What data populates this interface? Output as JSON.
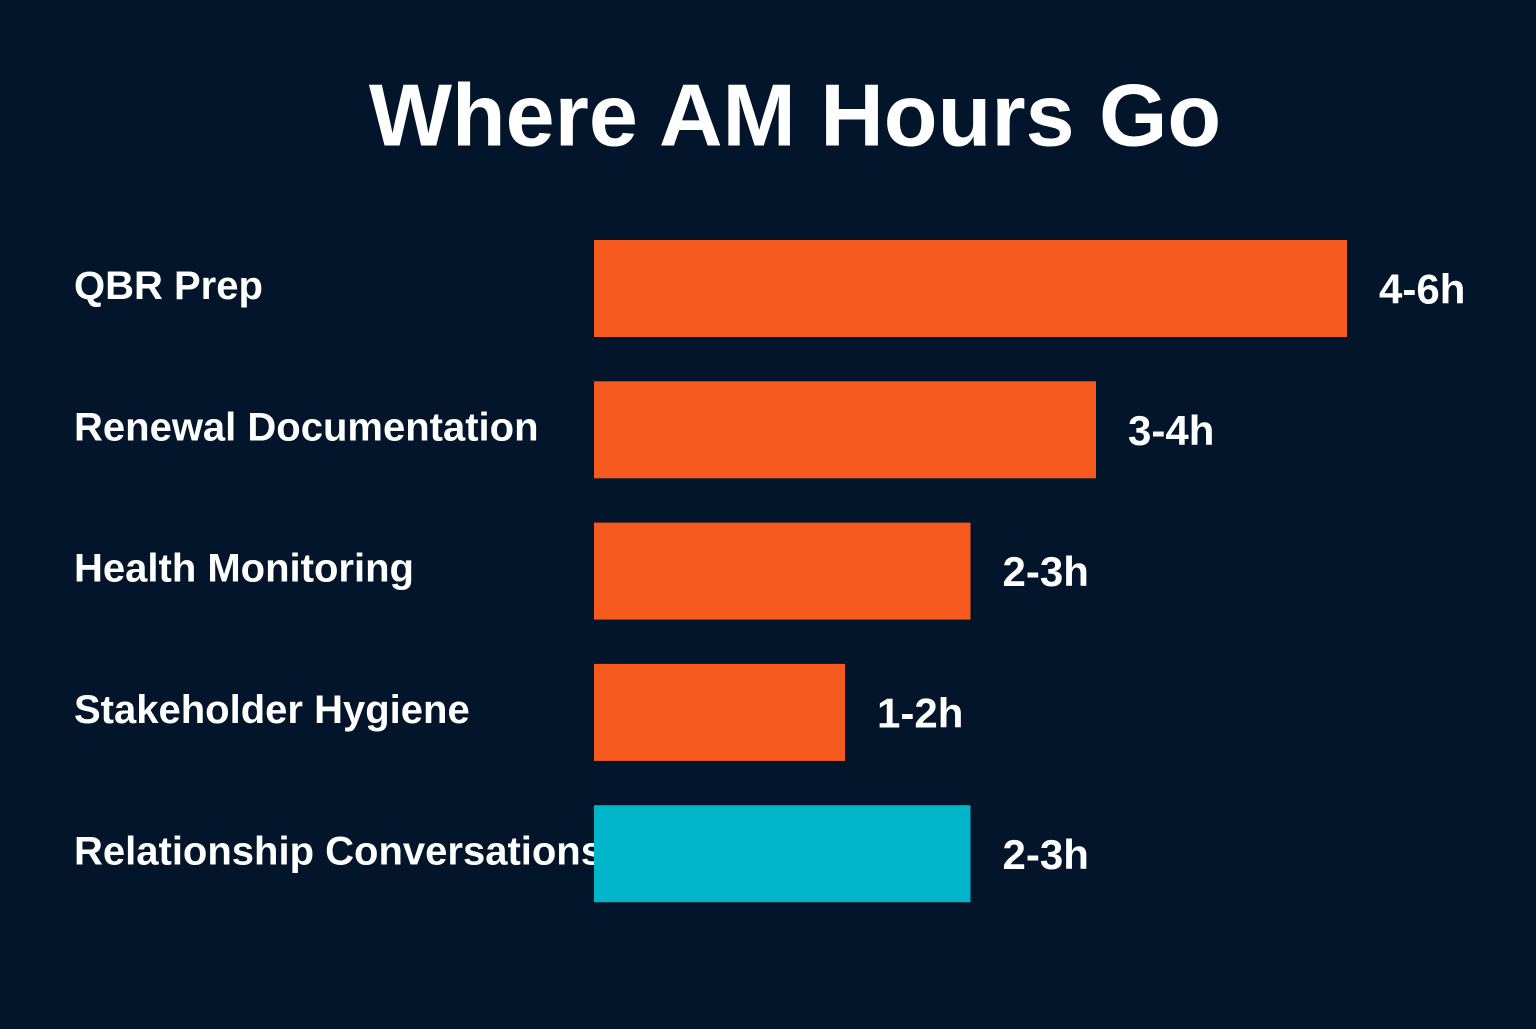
{
  "chart_data": {
    "type": "bar",
    "orientation": "horizontal",
    "title": "Where AM Hours Go",
    "categories": [
      "QBR Prep",
      "Renewal Documentation",
      "Health Monitoring",
      "Stakeholder Hygiene",
      "Relationship Conversations"
    ],
    "values": [
      6,
      4,
      3,
      2,
      3
    ],
    "value_labels": [
      "4-6h",
      "3-4h",
      "2-3h",
      "1-2h",
      "2-3h"
    ],
    "colors": [
      "#f75a1e",
      "#f75a1e",
      "#f75a1e",
      "#f75a1e",
      "#00b5c9"
    ]
  }
}
